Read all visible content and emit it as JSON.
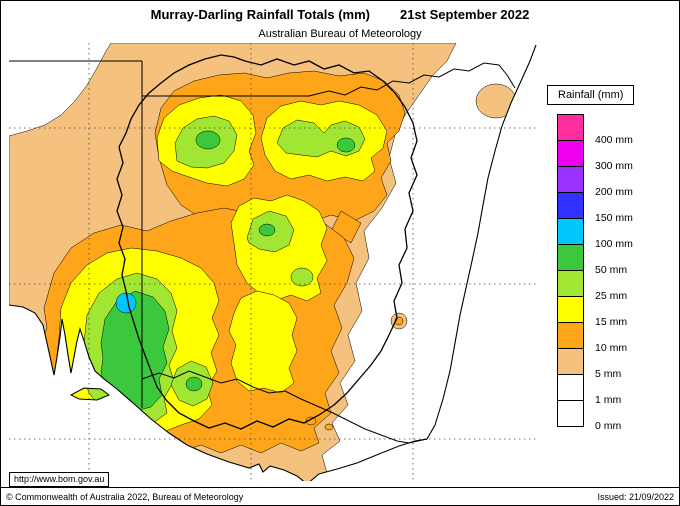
{
  "header": {
    "title": "Murray-Darling Rainfall Totals (mm)",
    "date": "21st September 2022",
    "subtitle": "Australian Bureau of Meteorology"
  },
  "legend": {
    "title": "Rainfall (mm)",
    "entries": [
      {
        "label": "400 mm",
        "key": "mm400"
      },
      {
        "label": "300 mm",
        "key": "mm300"
      },
      {
        "label": "200 mm",
        "key": "mm200"
      },
      {
        "label": "150 mm",
        "key": "mm150"
      },
      {
        "label": "100 mm",
        "key": "mm100"
      },
      {
        "label": "50 mm",
        "key": "mm50"
      },
      {
        "label": "25 mm",
        "key": "mm25"
      },
      {
        "label": "15 mm",
        "key": "mm15"
      },
      {
        "label": "10 mm",
        "key": "mm10"
      },
      {
        "label": "5 mm",
        "key": "mm5"
      },
      {
        "label": "1 mm",
        "key": "mm1"
      },
      {
        "label": "0 mm",
        "key": "mm0"
      }
    ]
  },
  "palette": {
    "mm400": "#ff2e9e",
    "mm300": "#ee00ee",
    "mm200": "#9932ff",
    "mm150": "#3232ff",
    "mm100": "#00c8ff",
    "mm50": "#3cc83c",
    "mm25": "#a0e632",
    "mm15": "#ffff00",
    "mm10": "#ffa519",
    "mm5": "#f4c17e",
    "mm1": "#ffffff",
    "mm0": "#ffffff"
  },
  "footer": {
    "url": "http://www.bom.gov.au",
    "copyright": "© Commonwealth of Australia 2022, Bureau of Meteorology",
    "issued": "Issued: 21/09/2022"
  }
}
